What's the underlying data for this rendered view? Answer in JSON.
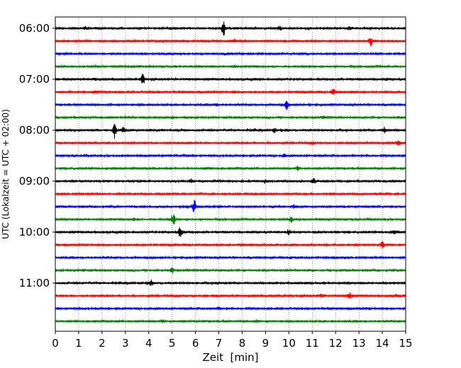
{
  "chart_data": {
    "type": "line",
    "title": "",
    "xlabel": "Zeit  [min]",
    "ylabel": "UTC (Lokalzeit = UTC + 02:00)",
    "xlim": [
      0,
      15
    ],
    "x_ticks": [
      0,
      1,
      2,
      3,
      4,
      5,
      6,
      7,
      8,
      9,
      10,
      11,
      12,
      13,
      14,
      15
    ],
    "x_tick_labels": [
      "0",
      "1",
      "2",
      "3",
      "4",
      "5",
      "6",
      "7",
      "8",
      "9",
      "10",
      "11",
      "12",
      "13",
      "14",
      "15"
    ],
    "y_tick_labels": [
      "06:00",
      "07:00",
      "08:00",
      "09:00",
      "10:00",
      "11:00"
    ],
    "y_tick_trace_index": [
      0,
      4,
      8,
      12,
      16,
      20
    ],
    "grid": "vertical dotted",
    "trace_colors": [
      "#000000",
      "#ff0000",
      "#0000ff",
      "#008000"
    ],
    "series": [
      {
        "values": [
          {
            "x": 7.2,
            "amp": 1.0
          },
          {
            "x": 1.3,
            "amp": 0.25
          },
          {
            "x": 9.6,
            "amp": 0.3
          },
          {
            "x": 12.6,
            "amp": 0.25
          }
        ]
      },
      {
        "values": [
          {
            "x": 13.5,
            "amp": 0.55
          },
          {
            "x": 7.7,
            "amp": 0.15
          }
        ]
      },
      {
        "values": [
          {
            "x": 7.3,
            "amp": 0.1
          }
        ]
      },
      {
        "values": [
          {
            "x": 7.7,
            "amp": 0.12
          }
        ]
      },
      {
        "values": [
          {
            "x": 3.75,
            "amp": 0.65
          },
          {
            "x": 1.7,
            "amp": 0.15
          },
          {
            "x": 14.2,
            "amp": 0.12
          }
        ]
      },
      {
        "values": [
          {
            "x": 11.9,
            "amp": 0.5
          },
          {
            "x": 1.7,
            "amp": 0.3
          },
          {
            "x": 7.7,
            "amp": 0.15
          }
        ]
      },
      {
        "values": [
          {
            "x": 9.9,
            "amp": 0.55
          },
          {
            "x": 6.9,
            "amp": 0.15
          }
        ]
      },
      {
        "values": [
          {
            "x": 5.0,
            "amp": 0.15
          },
          {
            "x": 11.5,
            "amp": 0.15
          }
        ]
      },
      {
        "values": [
          {
            "x": 2.55,
            "amp": 1.0
          },
          {
            "x": 2.9,
            "amp": 0.4
          },
          {
            "x": 14.1,
            "amp": 0.4
          },
          {
            "x": 9.4,
            "amp": 0.3
          }
        ]
      },
      {
        "values": [
          {
            "x": 14.7,
            "amp": 0.35
          },
          {
            "x": 11.0,
            "amp": 0.2
          }
        ]
      },
      {
        "values": [
          {
            "x": 9.8,
            "amp": 0.2
          }
        ]
      },
      {
        "values": [
          {
            "x": 10.4,
            "amp": 0.3
          },
          {
            "x": 6.5,
            "amp": 0.15
          }
        ]
      },
      {
        "values": [
          {
            "x": 11.05,
            "amp": 0.4
          },
          {
            "x": 5.8,
            "amp": 0.3
          },
          {
            "x": 9.0,
            "amp": 0.2
          }
        ]
      },
      {
        "values": [
          {
            "x": 14.2,
            "amp": 0.15
          }
        ]
      },
      {
        "values": [
          {
            "x": 5.95,
            "amp": 0.75
          },
          {
            "x": 10.2,
            "amp": 0.2
          }
        ]
      },
      {
        "values": [
          {
            "x": 5.05,
            "amp": 0.75
          },
          {
            "x": 10.1,
            "amp": 0.4
          },
          {
            "x": 3.4,
            "amp": 0.2
          }
        ]
      },
      {
        "values": [
          {
            "x": 5.35,
            "amp": 0.9
          },
          {
            "x": 10.0,
            "amp": 0.35
          },
          {
            "x": 14.5,
            "amp": 0.3
          }
        ]
      },
      {
        "values": [
          {
            "x": 14.0,
            "amp": 0.5
          },
          {
            "x": 8.0,
            "amp": 0.15
          }
        ]
      },
      {
        "values": [
          {
            "x": 12.0,
            "amp": 0.15
          }
        ]
      },
      {
        "values": [
          {
            "x": 5.0,
            "amp": 0.3
          },
          {
            "x": 1.2,
            "amp": 0.15
          }
        ]
      },
      {
        "values": [
          {
            "x": 4.1,
            "amp": 0.3
          },
          {
            "x": 7.0,
            "amp": 0.2
          }
        ]
      },
      {
        "values": [
          {
            "x": 12.6,
            "amp": 0.4
          },
          {
            "x": 11.4,
            "amp": 0.2
          },
          {
            "x": 14.6,
            "amp": 0.15
          }
        ]
      },
      {
        "values": [
          {
            "x": 7.0,
            "amp": 0.15
          }
        ]
      },
      {
        "values": [
          {
            "x": 4.6,
            "amp": 0.15
          },
          {
            "x": 8.6,
            "amp": 0.15
          }
        ]
      }
    ]
  }
}
